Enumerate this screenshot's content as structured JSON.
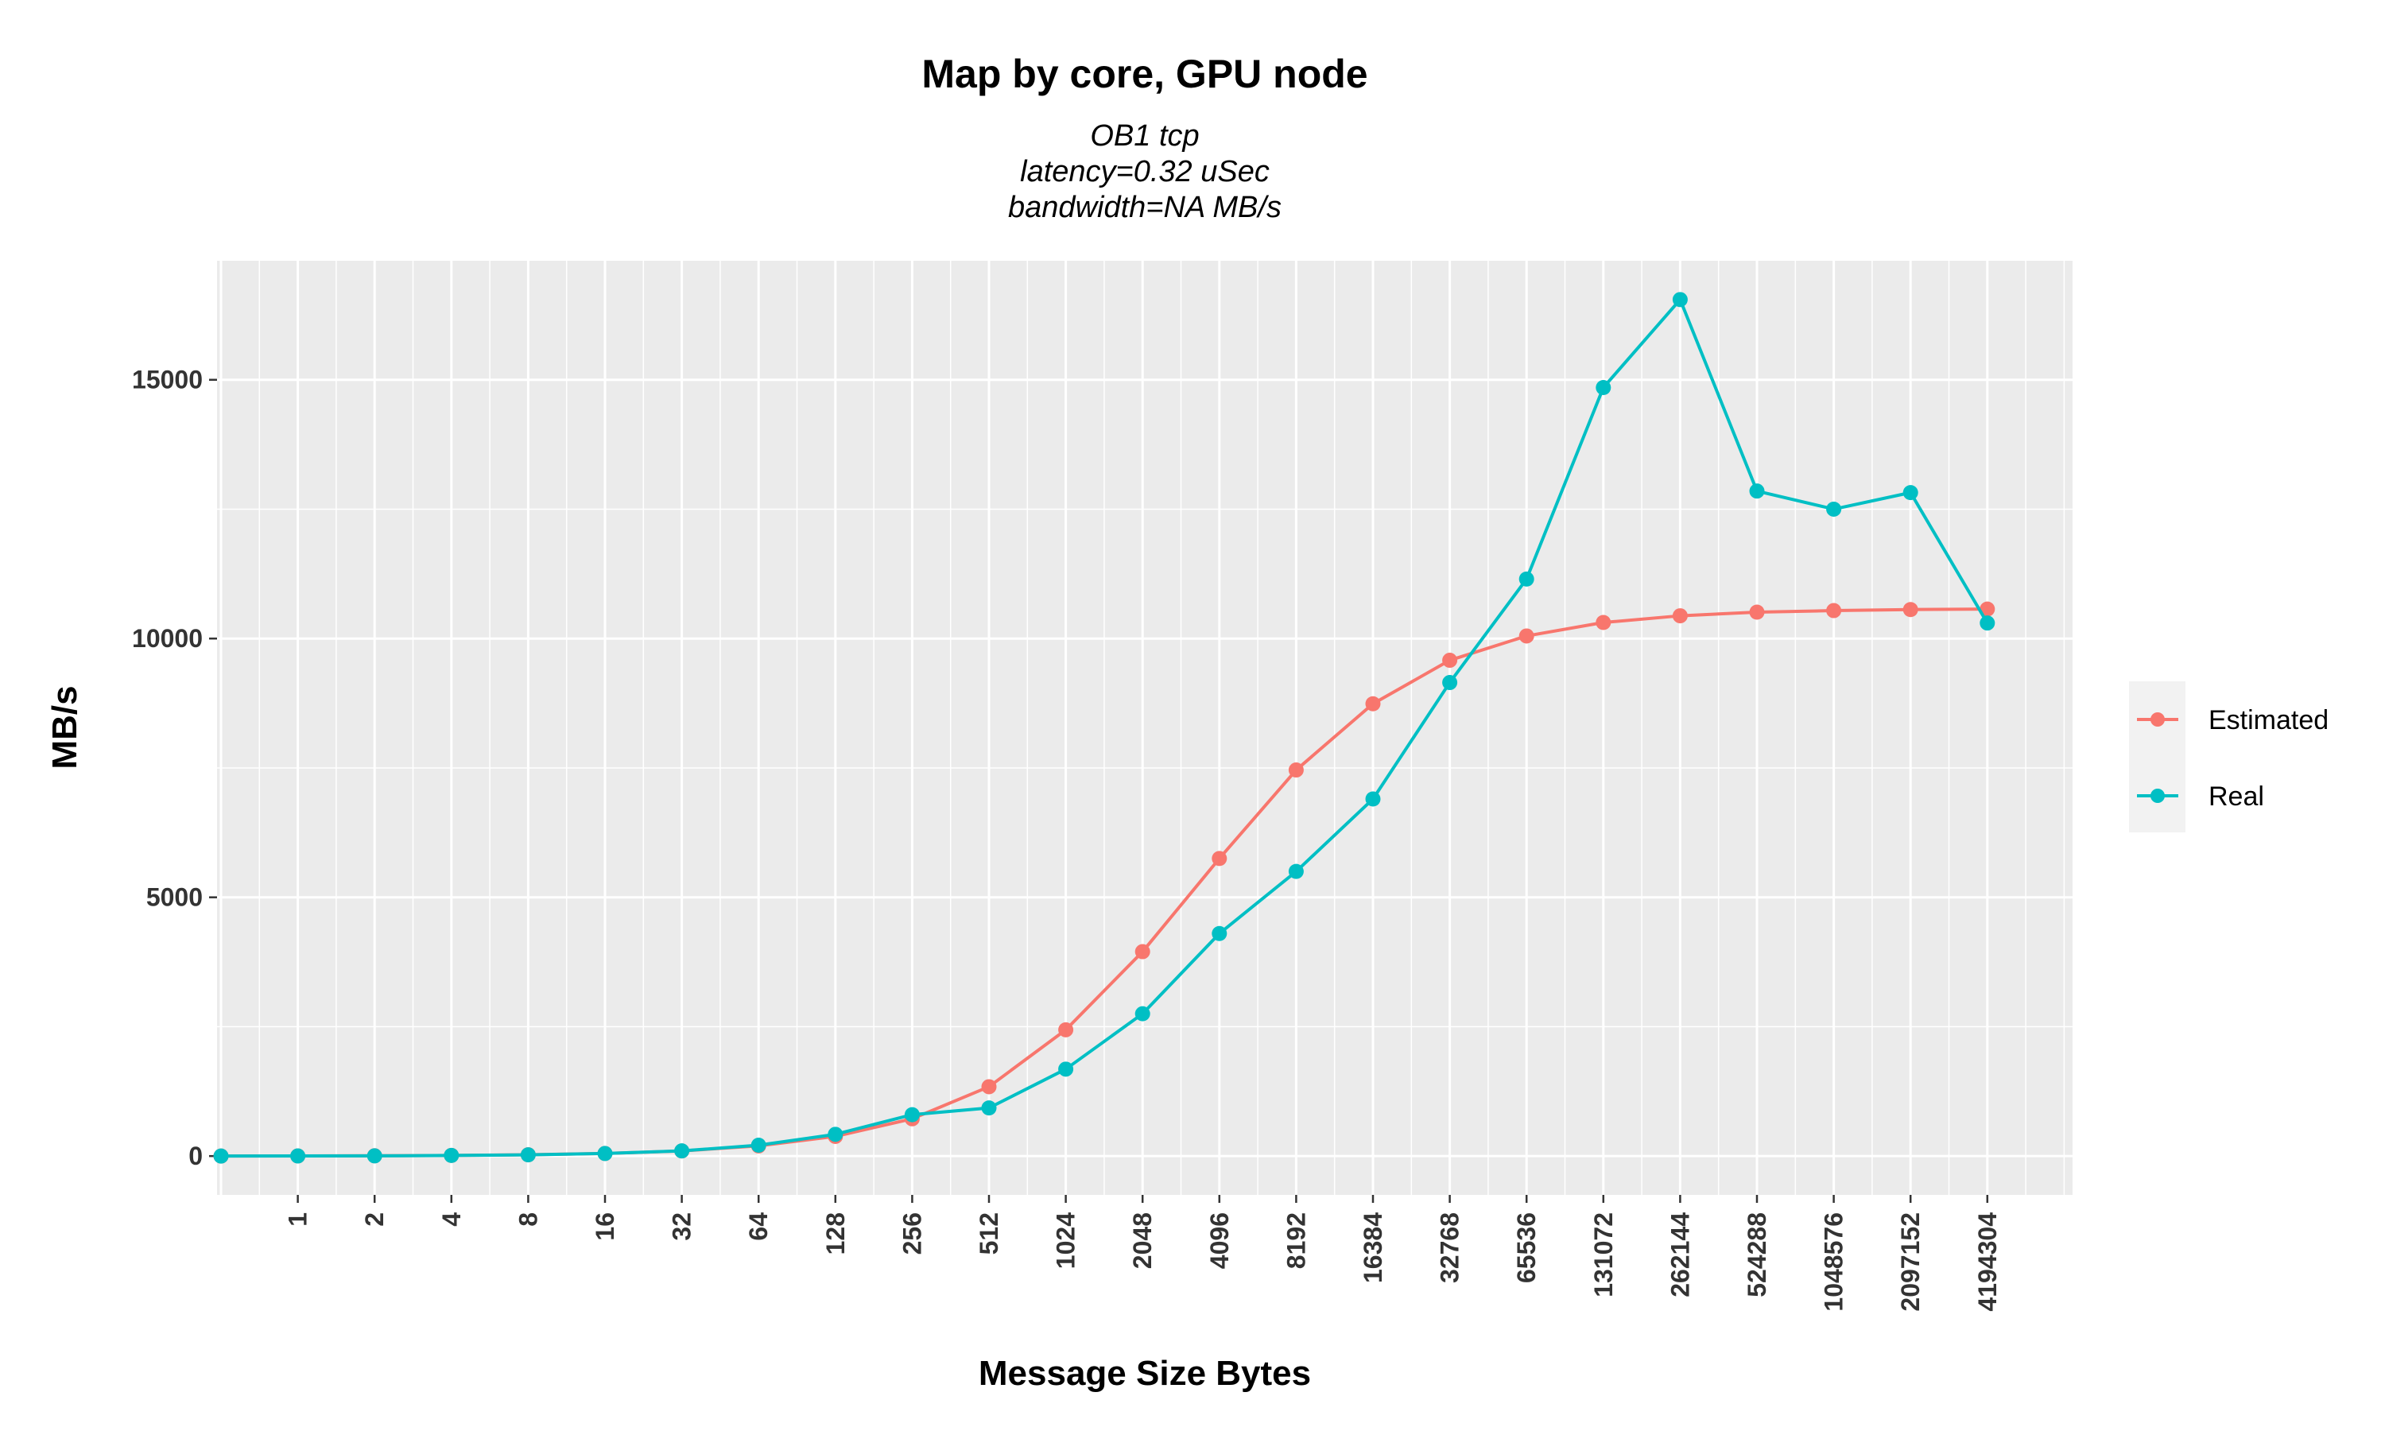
{
  "chart_data": {
    "type": "line",
    "title": "Map by core, GPU node",
    "subtitle": [
      "OB1 tcp",
      "latency=0.32 uSec",
      "bandwidth=NA MB/s"
    ],
    "xlabel": "Message Size Bytes",
    "ylabel": "MB/s",
    "categories": [
      "0",
      "1",
      "2",
      "4",
      "8",
      "16",
      "32",
      "64",
      "128",
      "256",
      "512",
      "1024",
      "2048",
      "4096",
      "8192",
      "16384",
      "32768",
      "65536",
      "131072",
      "262144",
      "524288",
      "1048576",
      "2097152",
      "4194304"
    ],
    "x_tick_labels": [
      "1",
      "2",
      "4",
      "8",
      "16",
      "32",
      "64",
      "128",
      "256",
      "512",
      "1024",
      "2048",
      "4096",
      "8192",
      "16384",
      "32768",
      "65536",
      "131072",
      "262144",
      "524288",
      "1048576",
      "2097152",
      "4194304"
    ],
    "y_ticks": [
      "0",
      "5000",
      "10000",
      "15000"
    ],
    "ylim": [
      -750,
      17300
    ],
    "grid": true,
    "legend_position": "right",
    "series": [
      {
        "name": "Estimated",
        "color": "#F8766D",
        "values": [
          0,
          3,
          6,
          13,
          25,
          50,
          99,
          196,
          380,
          720,
          1340,
          2440,
          3950,
          5750,
          7460,
          8740,
          9580,
          10050,
          10310,
          10440,
          10510,
          10540,
          10560,
          10570
        ]
      },
      {
        "name": "Real",
        "color": "#00BFC4",
        "values": [
          0,
          2,
          4,
          12,
          24,
          50,
          100,
          210,
          420,
          800,
          930,
          1680,
          2750,
          4300,
          5500,
          6900,
          9150,
          11150,
          14850,
          16550,
          12850,
          12500,
          12820,
          10300
        ]
      }
    ]
  }
}
